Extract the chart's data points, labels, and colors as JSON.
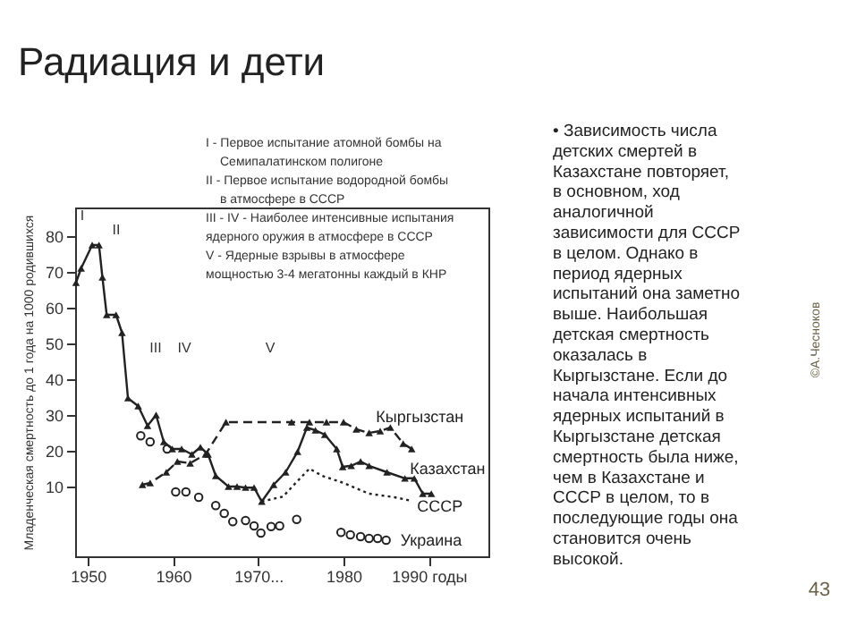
{
  "chart_data": {
    "type": "line",
    "title": "Радиация и дети",
    "ylabel": "Младенческая смертность до 1 года на 1000 родившихся",
    "xlim": [
      1948.5,
      1997
    ],
    "xticks": [
      1950,
      1960,
      {
        "value": 1970,
        "label": "1970..."
      },
      1980,
      {
        "value": 1990,
        "label": "1990 годы"
      }
    ],
    "ylim": [
      -9.5,
      88
    ],
    "yticks": [
      10,
      20,
      30,
      40,
      50,
      60,
      70,
      80
    ],
    "grid": false,
    "series": [
      {
        "name": "Казахстан",
        "color": "#222222",
        "marker": "triangle",
        "line_style": "solid",
        "x": [
          1948.6,
          1949.2,
          1950.5,
          1951.3,
          1951.7,
          1952.2,
          1953.3,
          1954,
          1954.7,
          1955.9,
          1957,
          1958,
          1958.9,
          1959.9,
          1961,
          1962.2,
          1963.2,
          1964.1,
          1965,
          1966.5,
          1967.5,
          1968.5,
          1969.5,
          1970.4,
          1971.8,
          1973.2,
          1974.6,
          1975.7,
          1976.7,
          1977.8,
          1979.2,
          1979.9,
          1980.9,
          1982,
          1983,
          1985.1,
          1987.2,
          1988.3,
          1989.3,
          1990.3
        ],
        "values": [
          67,
          71,
          77.5,
          77.5,
          68.5,
          58,
          58,
          53,
          34.7,
          32.5,
          27,
          30,
          22.5,
          20.5,
          20.5,
          19,
          21,
          19,
          13,
          10,
          10,
          9.7,
          9.7,
          5.8,
          10.5,
          14,
          19.7,
          26.5,
          25.7,
          24.5,
          20.5,
          15.5,
          15.8,
          17,
          15.8,
          14,
          12.3,
          12.3,
          8,
          8
        ]
      },
      {
        "name": "Кыргызстан",
        "color": "#222222",
        "marker": "triangle",
        "line_style": "dashed",
        "x": [
          1956.4,
          1957.3,
          1959.2,
          1960.5,
          1962,
          1963.8,
          1966.2,
          1973.9,
          1976,
          1978,
          1980,
          1981.5,
          1983,
          1984.3,
          1985.5,
          1987,
          1988
        ],
        "values": [
          10.5,
          11,
          14,
          17,
          16.5,
          19,
          28,
          28,
          28,
          28,
          28,
          26,
          25,
          25.5,
          26.5,
          22,
          20.5
        ]
      },
      {
        "name": "СССР",
        "color": "#222222",
        "marker": "none",
        "line_style": "dotted",
        "x": [
          1970.4,
          1972.9,
          1974.5,
          1976,
          1977.5,
          1980,
          1983,
          1986,
          1988
        ],
        "values": [
          5.8,
          7.2,
          11.3,
          15,
          13,
          11,
          8,
          7,
          6
        ]
      },
      {
        "name": "Украина",
        "type": "scatter",
        "color": "#222222",
        "marker": "circle",
        "x": [
          1956.2,
          1957.3,
          1959.3,
          1960.3,
          1961.5,
          1963,
          1965,
          1966,
          1967,
          1968.5,
          1969.5,
          1970.3,
          1971.5,
          1972.5,
          1974.5,
          1979.7,
          1980.8,
          1982,
          1983,
          1984,
          1985
        ],
        "values": [
          24.2,
          22.5,
          20.5,
          8.5,
          8.5,
          7,
          4.7,
          2.5,
          0.2,
          0.5,
          -1,
          -3,
          -1.2,
          -1,
          0.8,
          -2.8,
          -3.5,
          -4,
          -4.5,
          -4.5,
          -5
        ]
      }
    ],
    "annotations": [
      "I",
      "II",
      "III",
      "IV",
      "V",
      "I - Первое испытание атомной бомбы на",
      "Семипалатинском полигоне",
      "II - Первое испытание водородной бомбы",
      "в атмосфере в СССР",
      "III - IV - Наиболее интенсивные испытания",
      "ядерного   оружия в   атмосфере в СССР",
      "V - Ядерные взрывы в атмосфере",
      "мощностью 3-4 мегатонны каждый в КНР",
      "• Зависимость числа детских смертей в Казахстане повторяет, в основном, ход аналогичной зависимости для СССР в целом. Однако в период ядерных испытаний она заметно выше. Наибольшая детская смертность оказалась в Кыргызстане. Если до начала интенсивных ядерных испытаний в Кыргызстане детская смертность была ниже, чем в Казахстане и СССР в целом, то в последующие годы она становится очень высокой.",
      "©А.Чесноков",
      "43"
    ]
  }
}
